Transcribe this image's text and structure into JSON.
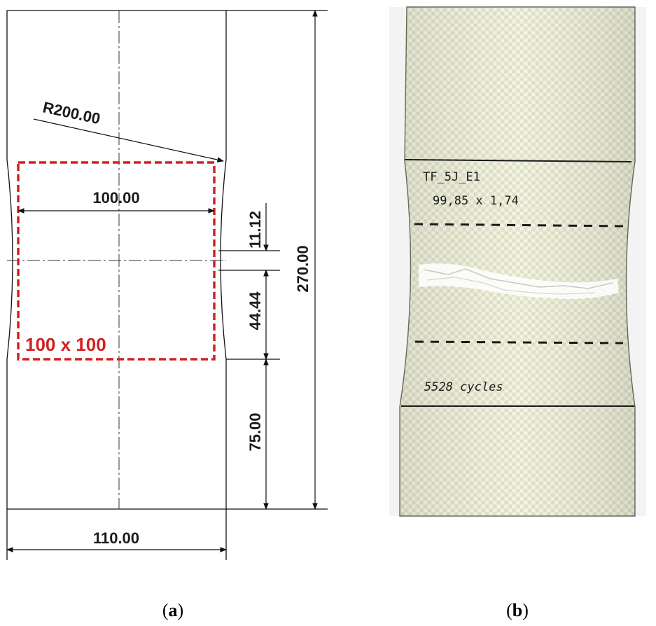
{
  "drawing": {
    "radius_label": "R200.00",
    "width_inner_label": "100.00",
    "dim_11_label": "11.12",
    "dim_44_label": "44.44",
    "dim_75_label": "75.00",
    "height_label": "270.00",
    "width_outer_label": "110.00",
    "roi_label": "100 x 100",
    "roi_color": "#d42020"
  },
  "photo": {
    "note_line1": "TF_5J_E1",
    "note_line2": "99,85 x 1,74",
    "note_cycles": "5528 cycles"
  },
  "captions": {
    "a": {
      "open": "(",
      "letter": "a",
      "close": ")"
    },
    "b": {
      "open": "(",
      "letter": "b",
      "close": ")"
    }
  }
}
